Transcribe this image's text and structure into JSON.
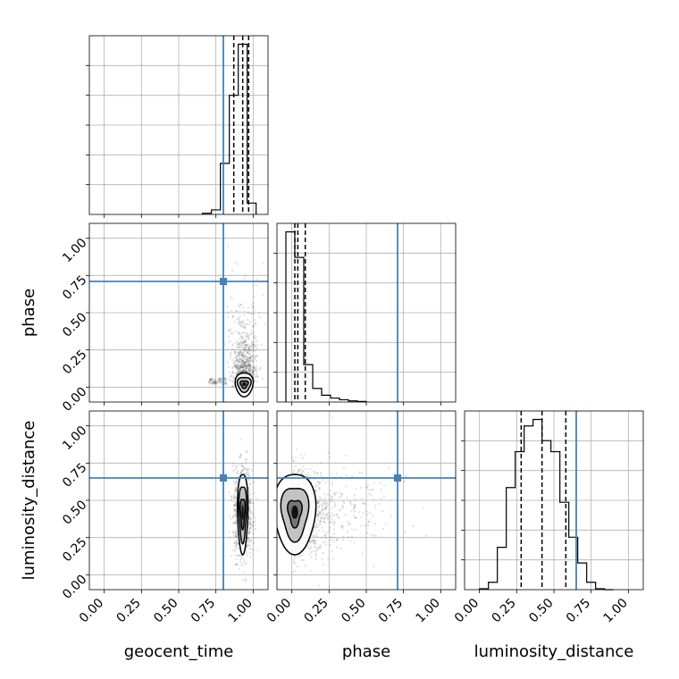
{
  "chart_data": {
    "type": "corner",
    "title": "",
    "parameters": [
      "geocent_time",
      "phase",
      "luminosity_distance"
    ],
    "axis_range": [
      -0.1,
      1.1
    ],
    "tick_values": [
      0.0,
      0.25,
      0.5,
      0.75,
      1.0
    ],
    "tick_labels": [
      "0.00",
      "0.25",
      "0.50",
      "0.75",
      "1.00"
    ],
    "grid": true,
    "colors": {
      "truth": "#4682b4",
      "hist": "#000000",
      "points": "#000000"
    },
    "truths": {
      "geocent_time": 0.8,
      "phase": 0.71,
      "luminosity_distance": 0.65
    },
    "histograms": [
      {
        "parameter": "geocent_time",
        "bin_edges": [
          0.66,
          0.72,
          0.78,
          0.84,
          0.9,
          0.96,
          1.02
        ],
        "counts": [
          2,
          8,
          90,
          210,
          300,
          20
        ],
        "quantiles": [
          0.87,
          0.93,
          0.97
        ]
      },
      {
        "parameter": "phase",
        "bin_edges": [
          -0.04,
          0.02,
          0.08,
          0.14,
          0.2,
          0.26,
          0.32,
          0.38,
          0.44,
          0.5
        ],
        "counts": [
          300,
          255,
          66,
          24,
          12,
          7,
          4,
          2,
          1
        ],
        "quantiles": [
          0.02,
          0.04,
          0.09
        ]
      },
      {
        "parameter": "luminosity_distance",
        "bin_edges": [
          0.0,
          0.06,
          0.12,
          0.18,
          0.24,
          0.3,
          0.36,
          0.42,
          0.48,
          0.54,
          0.6,
          0.66,
          0.72,
          0.78,
          0.84,
          0.9
        ],
        "counts": [
          1,
          8,
          46,
          111,
          150,
          178,
          185,
          162,
          150,
          95,
          57,
          29,
          8,
          1,
          0
        ],
        "quantiles": [
          0.28,
          0.42,
          0.58
        ]
      }
    ],
    "panels_2d": [
      {
        "x": "geocent_time",
        "y": "phase",
        "center": [
          0.94,
          0.02
        ],
        "contour_levels": [
          [
            0.06,
            0.08
          ],
          [
            0.045,
            0.05
          ],
          [
            0.025,
            0.025
          ]
        ]
      },
      {
        "x": "geocent_time",
        "y": "luminosity_distance",
        "center": [
          0.93,
          0.42
        ],
        "contour_levels": [
          [
            0.035,
            0.27
          ],
          [
            0.025,
            0.19
          ],
          [
            0.015,
            0.1
          ]
        ]
      },
      {
        "x": "phase",
        "y": "luminosity_distance",
        "center": [
          0.02,
          0.42
        ],
        "contour_levels": [
          [
            0.14,
            0.27
          ],
          [
            0.09,
            0.18
          ],
          [
            0.045,
            0.09
          ]
        ]
      }
    ]
  }
}
